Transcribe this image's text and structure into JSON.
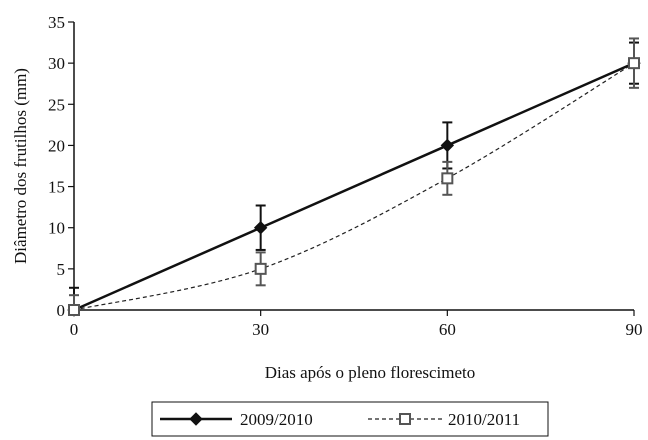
{
  "chart_data": {
    "type": "line",
    "xlabel": "Dias após o pleno florescimeto",
    "ylabel": "Diâmetro dos frutilhos (mm)",
    "xlim": [
      0,
      90
    ],
    "ylim": [
      0,
      35
    ],
    "xticks": [
      0,
      30,
      60,
      90
    ],
    "yticks": [
      0,
      5,
      10,
      15,
      20,
      25,
      30,
      35
    ],
    "grid": false,
    "legend_position": "bottom",
    "series": [
      {
        "name": "2009/2010",
        "x": [
          0,
          30,
          60,
          90
        ],
        "y": [
          0,
          10,
          20,
          30
        ],
        "error": [
          2.7,
          2.7,
          2.8,
          2.5
        ],
        "line_style": "solid",
        "marker": "filled-diamond",
        "color": "#111111"
      },
      {
        "name": "2010/2011",
        "x": [
          0,
          30,
          60,
          90
        ],
        "y": [
          0,
          5,
          16,
          30
        ],
        "error": [
          1.8,
          2.0,
          2.0,
          3.0
        ],
        "line_style": "dashed",
        "marker": "open-square",
        "color": "#555555"
      }
    ]
  }
}
